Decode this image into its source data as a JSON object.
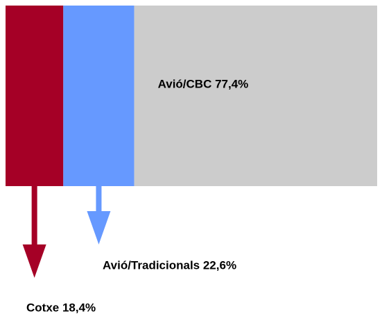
{
  "chart_data": {
    "type": "stacked-bar",
    "values": [
      18.4,
      22.6,
      77.4
    ],
    "value_labels": [
      "Cotxe 18,4%",
      "Avió/Tradicionals 22,6%",
      "Avió/CBC 77,4%"
    ],
    "colors": [
      "#a50026",
      "#6699ff",
      "#cccccc"
    ]
  }
}
